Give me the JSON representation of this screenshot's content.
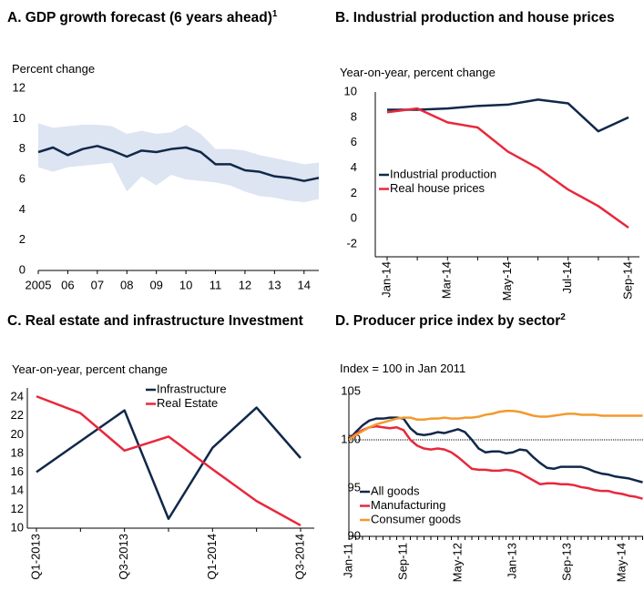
{
  "chart_data": [
    {
      "type": "line",
      "title": "A. GDP growth forecast (6 years ahead)",
      "title_superscript": "1",
      "y_label": "Percent change",
      "x": [
        2005,
        2005.5,
        2006,
        2006.5,
        2007,
        2007.5,
        2008,
        2008.5,
        2009,
        2009.5,
        2010,
        2010.5,
        2011,
        2011.5,
        2012,
        2012.5,
        2013,
        2013.5,
        2014,
        2014.5
      ],
      "xlim": [
        2005,
        2014.5
      ],
      "xticks": [
        {
          "value": 2005,
          "label": "2005"
        },
        {
          "value": 2006,
          "label": "06"
        },
        {
          "value": 2007,
          "label": "07"
        },
        {
          "value": 2008,
          "label": "08"
        },
        {
          "value": 2009,
          "label": "09"
        },
        {
          "value": 2010,
          "label": "10"
        },
        {
          "value": 2011,
          "label": "11"
        },
        {
          "value": 2012,
          "label": "12"
        },
        {
          "value": 2013,
          "label": "13"
        },
        {
          "value": 2014,
          "label": "14"
        }
      ],
      "ylim": [
        0,
        12
      ],
      "yticks": [
        0,
        2,
        4,
        6,
        8,
        10,
        12
      ],
      "band": {
        "color": "#dde4f2",
        "lower": [
          6.8,
          6.5,
          6.8,
          6.9,
          7.0,
          7.1,
          5.2,
          6.2,
          5.6,
          6.3,
          6.0,
          5.9,
          5.8,
          5.6,
          5.2,
          4.9,
          4.8,
          4.6,
          4.5,
          4.7
        ],
        "upper": [
          9.7,
          9.4,
          9.5,
          9.6,
          9.6,
          9.5,
          9.0,
          9.2,
          9.0,
          9.1,
          9.6,
          9.0,
          8.0,
          8.0,
          7.9,
          7.6,
          7.4,
          7.2,
          7.0,
          7.1
        ]
      },
      "series": [
        {
          "color": "#10284a",
          "values": [
            7.8,
            8.1,
            7.6,
            8.0,
            8.2,
            7.9,
            7.5,
            7.9,
            7.8,
            8.0,
            8.1,
            7.8,
            7.0,
            7.0,
            6.6,
            6.5,
            6.2,
            6.1,
            5.9,
            6.1
          ]
        }
      ]
    },
    {
      "type": "line",
      "title": "B. Industrial production and house prices",
      "y_label": "Year-on-year, percent change",
      "categories": [
        "Jan-14",
        null,
        "Mar-14",
        null,
        "May-14",
        null,
        "Jul-14",
        null,
        "Sep-14"
      ],
      "ylim": [
        -3,
        10
      ],
      "yticks": [
        -2,
        0,
        2,
        4,
        6,
        8,
        10
      ],
      "legend": "lower left",
      "series": [
        {
          "name": "Industrial production",
          "color": "#10284a",
          "values": [
            8.6,
            8.6,
            8.7,
            8.9,
            9.0,
            9.4,
            9.1,
            6.9,
            8.0
          ]
        },
        {
          "name": "Real house prices",
          "color": "#e8283c",
          "values": [
            8.4,
            8.7,
            7.6,
            7.2,
            5.3,
            4.0,
            2.3,
            1.0,
            -0.7
          ]
        }
      ]
    },
    {
      "type": "line",
      "title": "C. Real estate and infrastructure Investment",
      "y_label": "Year-on-year, percent change",
      "categories": [
        "Q1-2013",
        null,
        "Q3-2013",
        null,
        "Q1-2014",
        null,
        "Q3-2014"
      ],
      "ylim": [
        10,
        25
      ],
      "yticks": [
        10,
        12,
        14,
        16,
        18,
        20,
        22,
        24
      ],
      "legend": "upper center",
      "series": [
        {
          "name": "Infrastructure",
          "color": "#10284a",
          "values": [
            16.0,
            19.3,
            22.6,
            11.0,
            18.6,
            22.9,
            17.5
          ]
        },
        {
          "name": "Real Estate",
          "color": "#e8283c",
          "values": [
            24.1,
            22.3,
            18.3,
            19.8,
            16.3,
            12.9,
            10.3
          ]
        }
      ]
    },
    {
      "type": "line",
      "title": "D.   Producer price index by sector",
      "title_superscript": "2",
      "y_label": "Index = 100 in Jan 2011",
      "categories": [
        "Jan-11",
        null,
        null,
        null,
        null,
        null,
        null,
        null,
        "Sep-11",
        null,
        null,
        null,
        null,
        null,
        null,
        null,
        "May-12",
        null,
        null,
        null,
        null,
        null,
        null,
        null,
        "Jan-13",
        null,
        null,
        null,
        null,
        null,
        null,
        null,
        "Sep-13",
        null,
        null,
        null,
        null,
        null,
        null,
        null,
        "May-14",
        null,
        null,
        null
      ],
      "ylim": [
        90,
        105
      ],
      "yticks": [
        90,
        95,
        100,
        105
      ],
      "hline": 100,
      "legend": "lower left",
      "series": [
        {
          "name": "All goods",
          "color": "#10284a",
          "values": [
            100.0,
            100.8,
            101.5,
            102.0,
            102.2,
            102.2,
            102.3,
            102.3,
            102.2,
            101.2,
            100.6,
            100.5,
            100.6,
            100.8,
            100.7,
            100.9,
            101.1,
            100.8,
            100.0,
            99.1,
            98.7,
            98.8,
            98.8,
            98.6,
            98.7,
            99.0,
            98.9,
            98.2,
            97.6,
            97.1,
            97.0,
            97.2,
            97.2,
            97.2,
            97.2,
            97.0,
            96.7,
            96.5,
            96.4,
            96.2,
            96.1,
            96.0,
            95.8,
            95.6
          ]
        },
        {
          "name": "Manufacturing",
          "color": "#e8283c",
          "values": [
            100.0,
            100.6,
            101.0,
            101.3,
            101.4,
            101.3,
            101.2,
            101.3,
            101.0,
            100.0,
            99.4,
            99.1,
            99.0,
            99.1,
            99.0,
            98.7,
            98.2,
            97.6,
            97.0,
            96.9,
            96.9,
            96.8,
            96.8,
            96.9,
            96.8,
            96.6,
            96.2,
            95.8,
            95.4,
            95.5,
            95.5,
            95.4,
            95.4,
            95.3,
            95.1,
            95.0,
            94.8,
            94.7,
            94.7,
            94.5,
            94.4,
            94.2,
            94.1,
            93.9
          ]
        },
        {
          "name": "Consumer goods",
          "color": "#f29a2e",
          "values": [
            100.0,
            100.5,
            100.9,
            101.3,
            101.6,
            101.8,
            102.0,
            102.2,
            102.3,
            102.3,
            102.1,
            102.1,
            102.2,
            102.2,
            102.3,
            102.2,
            102.2,
            102.3,
            102.3,
            102.4,
            102.6,
            102.7,
            102.9,
            103.0,
            103.0,
            102.9,
            102.7,
            102.5,
            102.4,
            102.4,
            102.5,
            102.6,
            102.7,
            102.7,
            102.6,
            102.6,
            102.6,
            102.5,
            102.5,
            102.5,
            102.5,
            102.5,
            102.5,
            102.5
          ]
        }
      ]
    }
  ]
}
